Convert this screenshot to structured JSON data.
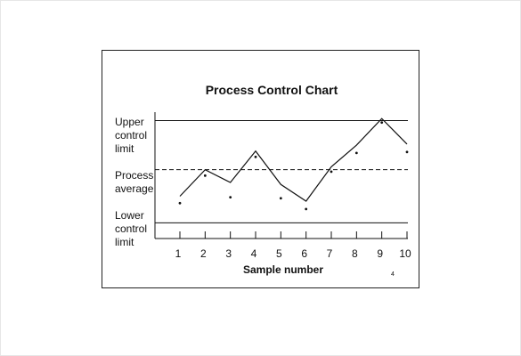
{
  "chart_data": {
    "type": "line",
    "title": "Process Control Chart",
    "xlabel": "Sample number",
    "ylabel": "",
    "x": [
      1,
      2,
      3,
      4,
      5,
      6,
      7,
      8,
      9,
      10
    ],
    "series": [
      {
        "values": [
          0.65,
          2.0,
          1.35,
          2.95,
          1.25,
          0.4,
          2.15,
          3.25,
          4.6,
          3.3
        ]
      }
    ],
    "points": [
      0.3,
      1.7,
      0.6,
      2.65,
      0.55,
      0.0,
      1.9,
      2.85,
      4.4,
      2.9
    ],
    "reference_lines": [
      {
        "label": "Upper\ncontrol\nlimit",
        "value": 4.5,
        "style": "solid"
      },
      {
        "label": "Process\naverage",
        "value": 2.0,
        "style": "dashed"
      },
      {
        "label": "Lower\ncontrol\nlimit",
        "value": -0.7,
        "style": "solid"
      }
    ],
    "grid": false,
    "legend": "none"
  },
  "page_number": "4",
  "colors": {
    "line": "#111111",
    "frame": "#222222",
    "background": "#ffffff"
  }
}
